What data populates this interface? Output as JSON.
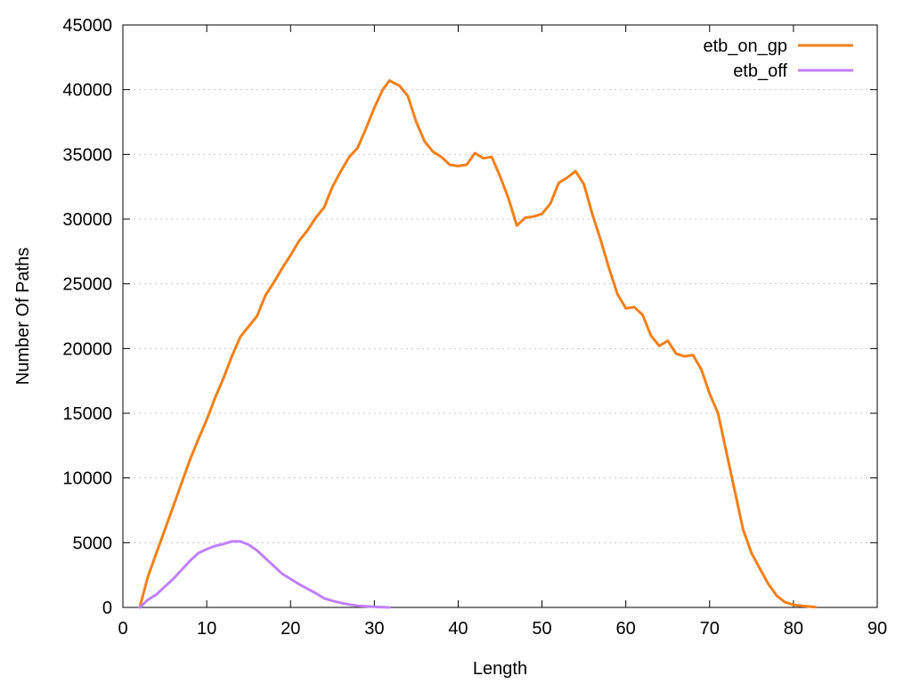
{
  "chart_data": {
    "type": "line",
    "title": "",
    "xlabel": "Length",
    "ylabel": "Number Of Paths",
    "xlim": [
      0,
      90
    ],
    "ylim": [
      0,
      45000
    ],
    "x_ticks": [
      0,
      10,
      20,
      30,
      40,
      50,
      60,
      70,
      80,
      90
    ],
    "y_ticks": [
      0,
      5000,
      10000,
      15000,
      20000,
      25000,
      30000,
      35000,
      40000,
      45000
    ],
    "grid": "horizontal dotted",
    "legend_position": "top-right",
    "series": [
      {
        "name": "etb_on_gp",
        "color": "#f28019",
        "points": [
          [
            2,
            0
          ],
          [
            3,
            2400
          ],
          [
            4,
            4200
          ],
          [
            5,
            6000
          ],
          [
            6,
            7800
          ],
          [
            7,
            9600
          ],
          [
            8,
            11400
          ],
          [
            9,
            13000
          ],
          [
            10,
            14500
          ],
          [
            11,
            16200
          ],
          [
            12,
            17700
          ],
          [
            13,
            19400
          ],
          [
            14,
            20900
          ],
          [
            15,
            21700
          ],
          [
            16,
            22500
          ],
          [
            17,
            24100
          ],
          [
            18,
            25100
          ],
          [
            19,
            26200
          ],
          [
            20,
            27200
          ],
          [
            21,
            28300
          ],
          [
            22,
            29100
          ],
          [
            23,
            30100
          ],
          [
            24,
            30900
          ],
          [
            25,
            32500
          ],
          [
            26,
            33700
          ],
          [
            27,
            34800
          ],
          [
            28,
            35500
          ],
          [
            29,
            37000
          ],
          [
            30,
            38600
          ],
          [
            31,
            40000
          ],
          [
            31.8,
            40700
          ],
          [
            33,
            40300
          ],
          [
            34,
            39500
          ],
          [
            35,
            37500
          ],
          [
            36,
            36000
          ],
          [
            37,
            35200
          ],
          [
            38,
            34800
          ],
          [
            39,
            34200
          ],
          [
            40,
            34100
          ],
          [
            41,
            34200
          ],
          [
            42,
            35100
          ],
          [
            43,
            34700
          ],
          [
            44,
            34800
          ],
          [
            45,
            33300
          ],
          [
            46,
            31600
          ],
          [
            47,
            29500
          ],
          [
            48,
            30100
          ],
          [
            49,
            30200
          ],
          [
            50,
            30400
          ],
          [
            51,
            31200
          ],
          [
            52,
            32800
          ],
          [
            53,
            33200
          ],
          [
            54,
            33700
          ],
          [
            55,
            32700
          ],
          [
            56,
            30400
          ],
          [
            57,
            28400
          ],
          [
            58,
            26200
          ],
          [
            59,
            24200
          ],
          [
            60,
            23100
          ],
          [
            61,
            23200
          ],
          [
            62,
            22600
          ],
          [
            63,
            21000
          ],
          [
            64,
            20200
          ],
          [
            65,
            20600
          ],
          [
            66,
            19600
          ],
          [
            67,
            19400
          ],
          [
            68,
            19500
          ],
          [
            69,
            18400
          ],
          [
            70,
            16500
          ],
          [
            71,
            15000
          ],
          [
            72,
            12000
          ],
          [
            73,
            9000
          ],
          [
            74,
            6000
          ],
          [
            75,
            4200
          ],
          [
            76,
            3000
          ],
          [
            77,
            1800
          ],
          [
            78,
            900
          ],
          [
            79,
            400
          ],
          [
            80,
            200
          ],
          [
            81,
            120
          ],
          [
            82,
            60
          ],
          [
            82.6,
            30
          ]
        ]
      },
      {
        "name": "etb_off",
        "color": "#c080ff",
        "points": [
          [
            2,
            0
          ],
          [
            3,
            600
          ],
          [
            4,
            1000
          ],
          [
            5,
            1600
          ],
          [
            6,
            2200
          ],
          [
            7,
            2900
          ],
          [
            8,
            3600
          ],
          [
            9,
            4200
          ],
          [
            10,
            4500
          ],
          [
            11,
            4750
          ],
          [
            12,
            4900
          ],
          [
            13,
            5100
          ],
          [
            14,
            5100
          ],
          [
            15,
            4850
          ],
          [
            16,
            4400
          ],
          [
            17,
            3800
          ],
          [
            18,
            3200
          ],
          [
            19,
            2600
          ],
          [
            20,
            2200
          ],
          [
            21,
            1800
          ],
          [
            22,
            1450
          ],
          [
            23,
            1100
          ],
          [
            24,
            700
          ],
          [
            25,
            500
          ],
          [
            26,
            350
          ],
          [
            27,
            220
          ],
          [
            28,
            130
          ],
          [
            29,
            80
          ],
          [
            30,
            40
          ],
          [
            31,
            15
          ],
          [
            31.8,
            0
          ]
        ]
      }
    ]
  }
}
